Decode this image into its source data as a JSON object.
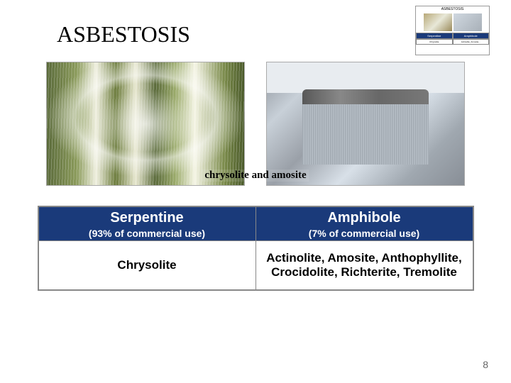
{
  "title": "ASBESTOSIS",
  "caption": "chrysolite and amosite",
  "table": {
    "header_bg": "#1a3a7a",
    "header_fg": "#ffffff",
    "border_color": "#888888",
    "columns": [
      {
        "name": "Serpentine",
        "usage": "(93% of commercial use)",
        "minerals": "Chrysolite"
      },
      {
        "name": "Amphibole",
        "usage": "(7% of commercial use)",
        "minerals": "Actinolite, Amosite, Anthophyllite, Crocidolite, Richterite, Tremolite"
      }
    ]
  },
  "page_number": "8",
  "thumb": {
    "title": "ASBESTOSIS",
    "h1": "Serpentine",
    "h2": "Amphibole",
    "c1": "Chrysolite",
    "c2": "Actinolite, Amosite..."
  }
}
